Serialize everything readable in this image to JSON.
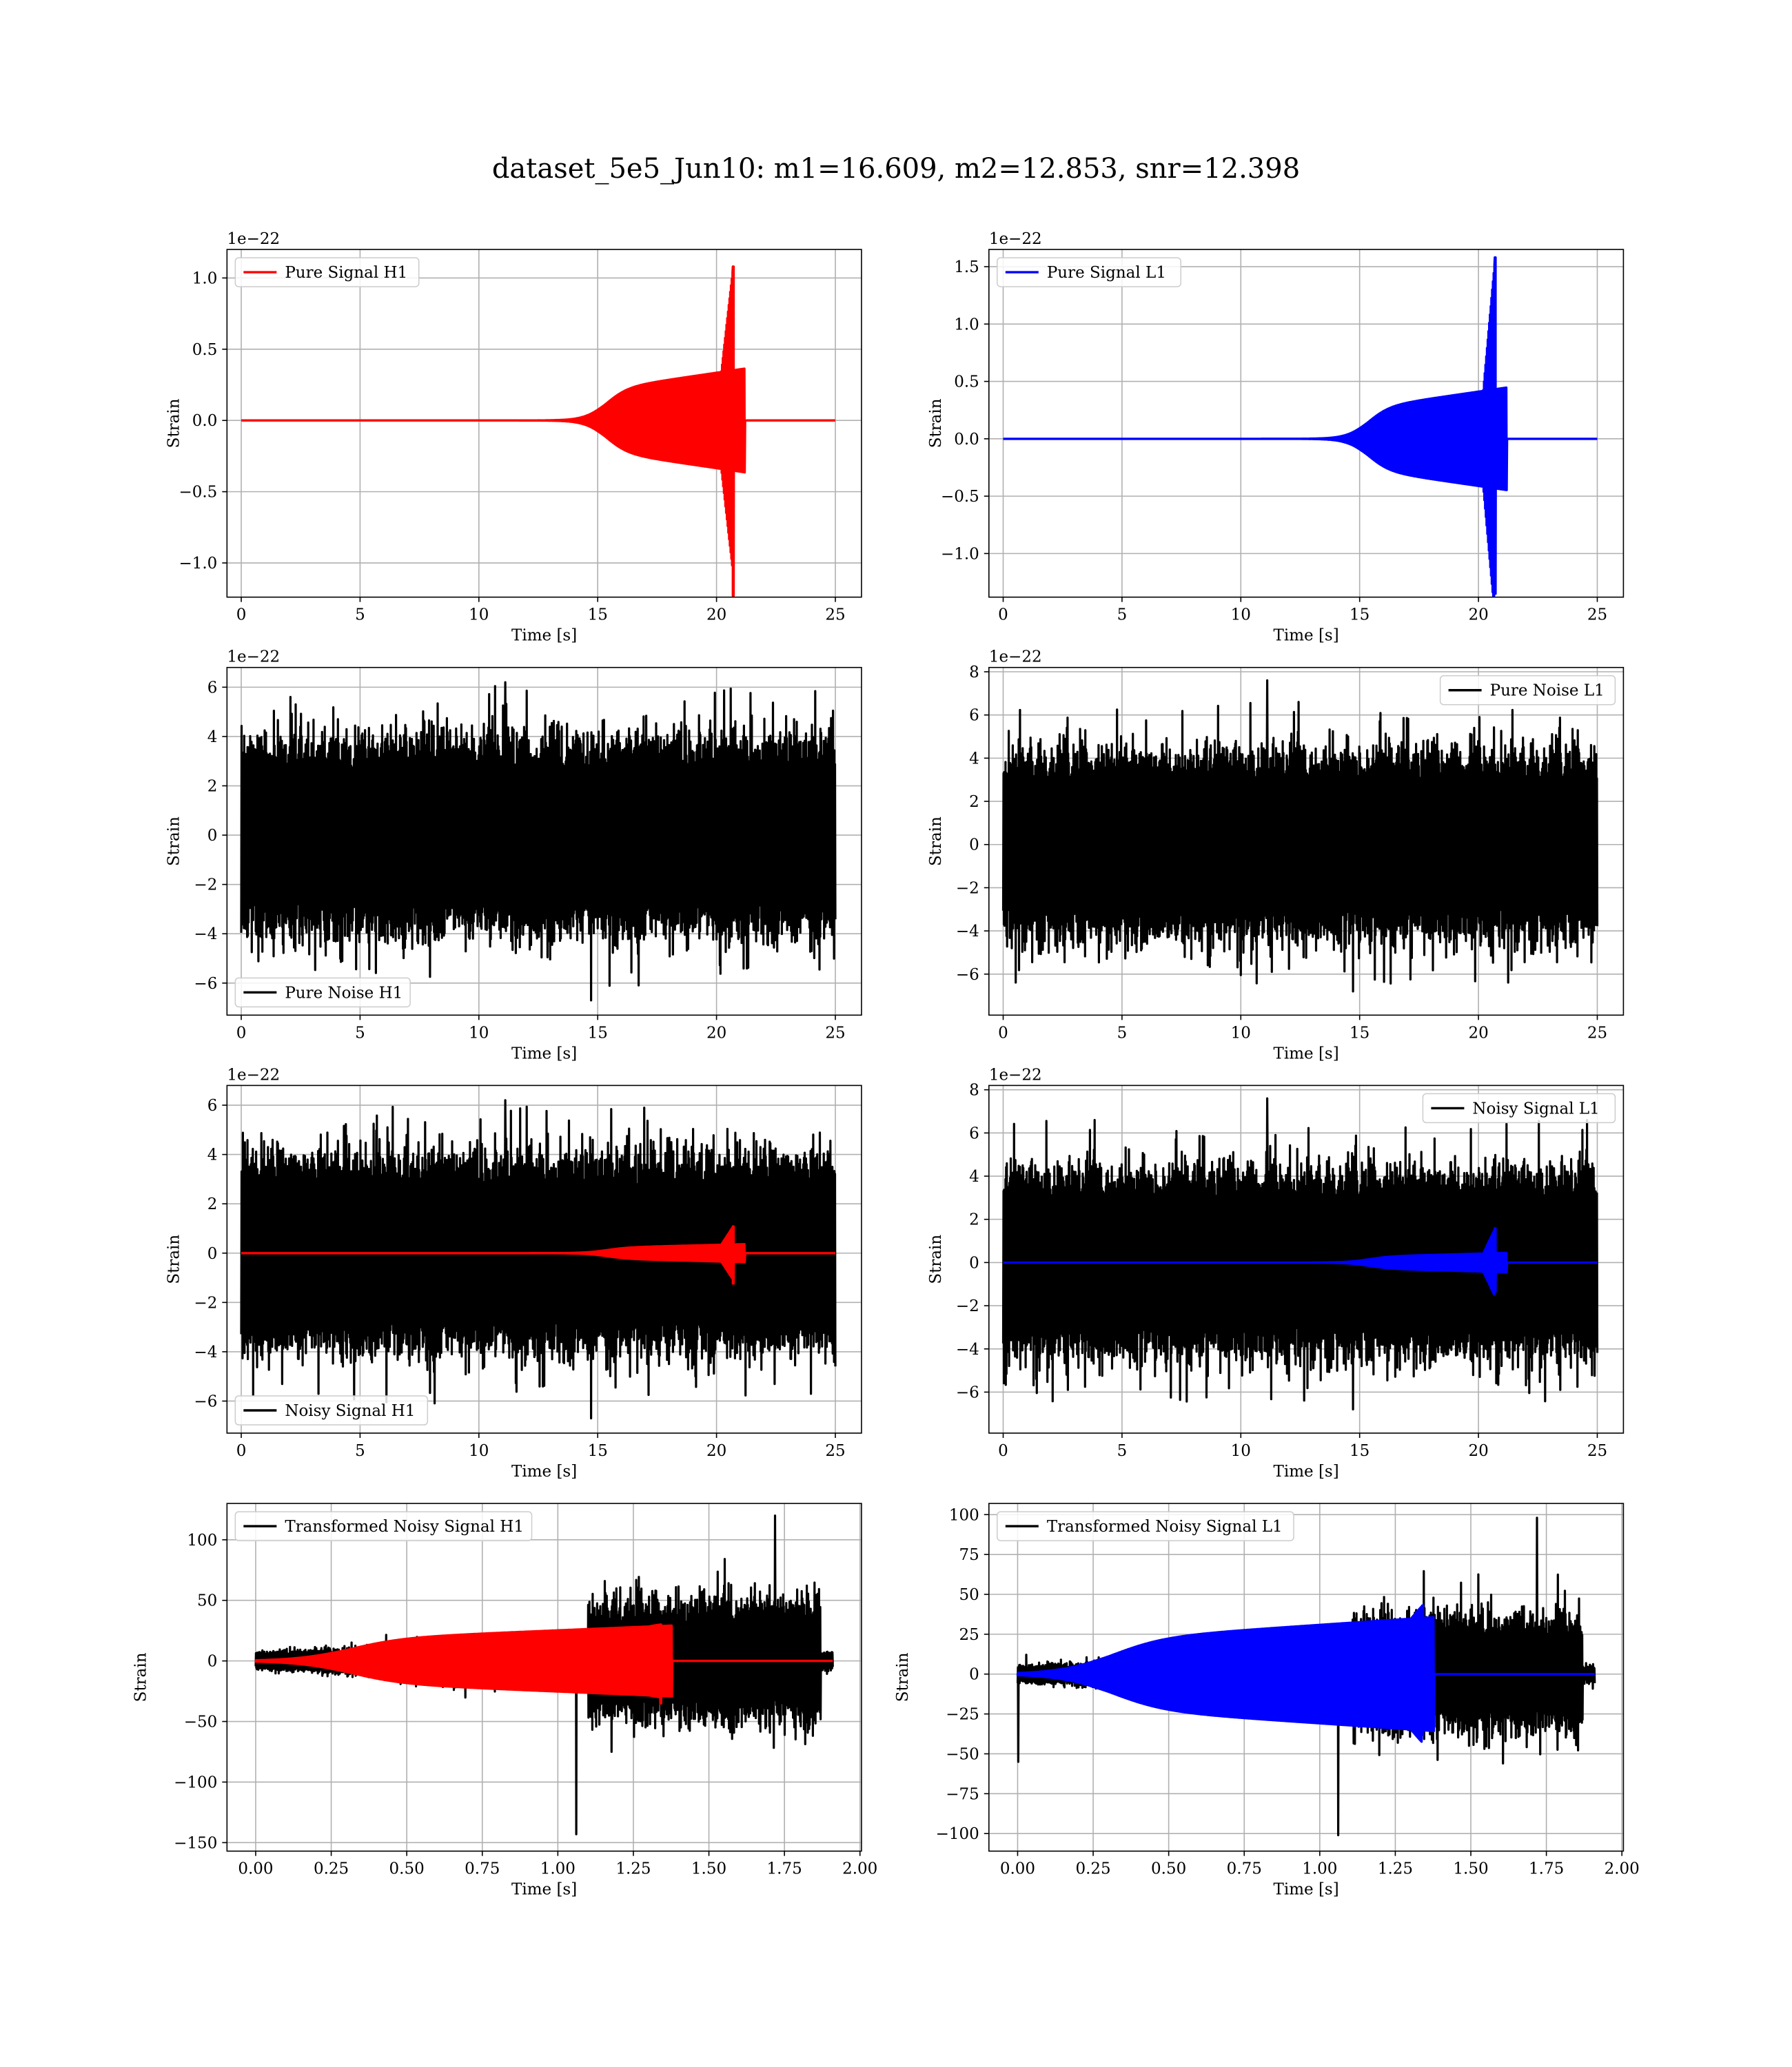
{
  "title": "dataset_5e5_Jun10: m1=16.609, m2=12.853, snr=12.398",
  "colors": {
    "h1_signal": "#ff0000",
    "l1_signal": "#0000ff",
    "noise": "#000000",
    "grid": "#b0b0b0"
  },
  "chart_data": [
    {
      "id": "pure-signal-h1",
      "type": "line",
      "xlabel": "Time [s]",
      "ylabel": "Strain",
      "offset_label": "1e−22",
      "xlim": [
        -0.6,
        26.1
      ],
      "ylim": [
        -1.24,
        1.2
      ],
      "xticks": [
        0,
        5,
        10,
        15,
        20,
        25
      ],
      "yticks": [
        -1.0,
        -0.5,
        0.0,
        0.5,
        1.0
      ],
      "ytick_labels": [
        "−1.0",
        "−0.5",
        "0.0",
        "0.5",
        "1.0"
      ],
      "legend": "upper-left",
      "grid": true,
      "series": [
        {
          "name": "Pure Signal H1",
          "color": "#ff0000",
          "kind": "chirp",
          "x_start": 0,
          "x_end": 25,
          "t_merge": 20.7,
          "t_onset": 15.3,
          "plateau": 0.22,
          "peak": 1.08,
          "peak_neg": -1.23
        }
      ]
    },
    {
      "id": "pure-signal-l1",
      "type": "line",
      "xlabel": "Time [s]",
      "ylabel": "Strain",
      "offset_label": "1e−22",
      "xlim": [
        -0.6,
        26.1
      ],
      "ylim": [
        -1.38,
        1.65
      ],
      "xticks": [
        0,
        5,
        10,
        15,
        20,
        25
      ],
      "yticks": [
        -1.0,
        -0.5,
        0.0,
        0.5,
        1.0,
        1.5
      ],
      "ytick_labels": [
        "−1.0",
        "−0.5",
        "0.0",
        "0.5",
        "1.0",
        "1.5"
      ],
      "legend": "upper-left",
      "grid": true,
      "series": [
        {
          "name": "Pure Signal L1",
          "color": "#0000ff",
          "kind": "chirp",
          "x_start": 0,
          "x_end": 25,
          "t_merge": 20.7,
          "t_onset": 15.3,
          "plateau": 0.27,
          "peak": 1.58,
          "peak_neg": -1.35
        }
      ]
    },
    {
      "id": "pure-noise-h1",
      "type": "line",
      "xlabel": "Time [s]",
      "ylabel": "Strain",
      "offset_label": "1e−22",
      "xlim": [
        -0.6,
        26.1
      ],
      "ylim": [
        -7.3,
        6.8
      ],
      "xticks": [
        0,
        5,
        10,
        15,
        20,
        25
      ],
      "yticks": [
        -6,
        -4,
        -2,
        0,
        2,
        4,
        6
      ],
      "ytick_labels": [
        "−6",
        "−4",
        "−2",
        "0",
        "2",
        "4",
        "6"
      ],
      "legend": "lower-left",
      "grid": true,
      "series": [
        {
          "name": "Pure Noise H1",
          "color": "#000000",
          "kind": "noise",
          "x_start": 0,
          "x_end": 25,
          "band": 3.6,
          "spike_max": 6.2,
          "spike_min": -6.7
        }
      ]
    },
    {
      "id": "pure-noise-l1",
      "type": "line",
      "xlabel": "Time [s]",
      "ylabel": "Strain",
      "offset_label": "1e−22",
      "xlim": [
        -0.6,
        26.1
      ],
      "ylim": [
        -7.9,
        8.2
      ],
      "xticks": [
        0,
        5,
        10,
        15,
        20,
        25
      ],
      "yticks": [
        -6,
        -4,
        -2,
        0,
        2,
        4,
        6,
        8
      ],
      "ytick_labels": [
        "−6",
        "−4",
        "−2",
        "0",
        "2",
        "4",
        "6",
        "8"
      ],
      "legend": "upper-right",
      "grid": true,
      "series": [
        {
          "name": "Pure Noise L1",
          "color": "#000000",
          "kind": "noise",
          "x_start": 0,
          "x_end": 25,
          "band": 3.9,
          "spike_max": 7.6,
          "spike_min": -6.8
        }
      ]
    },
    {
      "id": "noisy-signal-h1",
      "type": "line",
      "xlabel": "Time [s]",
      "ylabel": "Strain",
      "offset_label": "1e−22",
      "xlim": [
        -0.6,
        26.1
      ],
      "ylim": [
        -7.3,
        6.8
      ],
      "xticks": [
        0,
        5,
        10,
        15,
        20,
        25
      ],
      "yticks": [
        -6,
        -4,
        -2,
        0,
        2,
        4,
        6
      ],
      "ytick_labels": [
        "−6",
        "−4",
        "−2",
        "0",
        "2",
        "4",
        "6"
      ],
      "legend": "lower-left",
      "grid": true,
      "series": [
        {
          "name": "Noisy Signal H1",
          "color": "#000000",
          "kind": "noise",
          "x_start": 0,
          "x_end": 25,
          "band": 3.6,
          "spike_max": 6.2,
          "spike_min": -6.7
        },
        {
          "color": "#ff0000",
          "kind": "chirp",
          "x_start": 0,
          "x_end": 25,
          "t_merge": 20.7,
          "t_onset": 15.3,
          "plateau": 0.22,
          "peak": 1.08,
          "peak_neg": -1.23
        }
      ]
    },
    {
      "id": "noisy-signal-l1",
      "type": "line",
      "xlabel": "Time [s]",
      "ylabel": "Strain",
      "offset_label": "1e−22",
      "xlim": [
        -0.6,
        26.1
      ],
      "ylim": [
        -7.9,
        8.2
      ],
      "xticks": [
        0,
        5,
        10,
        15,
        20,
        25
      ],
      "yticks": [
        -6,
        -4,
        -2,
        0,
        2,
        4,
        6,
        8
      ],
      "ytick_labels": [
        "−6",
        "−4",
        "−2",
        "0",
        "2",
        "4",
        "6",
        "8"
      ],
      "legend": "upper-right",
      "grid": true,
      "series": [
        {
          "name": "Noisy Signal L1",
          "color": "#000000",
          "kind": "noise",
          "x_start": 0,
          "x_end": 25,
          "band": 3.9,
          "spike_max": 7.6,
          "spike_min": -6.8
        },
        {
          "color": "#0000ff",
          "kind": "chirp",
          "x_start": 0,
          "x_end": 25,
          "t_merge": 20.7,
          "t_onset": 15.3,
          "plateau": 0.27,
          "peak": 1.58,
          "peak_neg": -1.35
        }
      ]
    },
    {
      "id": "transformed-noisy-signal-h1",
      "type": "line",
      "xlabel": "Time [s]",
      "ylabel": "Strain",
      "offset_label": "",
      "xlim": [
        -0.095,
        2.005
      ],
      "ylim": [
        -157,
        130
      ],
      "xticks": [
        0.0,
        0.25,
        0.5,
        0.75,
        1.0,
        1.25,
        1.5,
        1.75,
        2.0
      ],
      "xtick_labels": [
        "0.00",
        "0.25",
        "0.50",
        "0.75",
        "1.00",
        "1.25",
        "1.50",
        "1.75",
        "2.00"
      ],
      "yticks": [
        -150,
        -100,
        -50,
        0,
        50,
        100
      ],
      "ytick_labels": [
        "−150",
        "−100",
        "−50",
        "0",
        "50",
        "100"
      ],
      "legend": "upper-left",
      "grid": true,
      "series": [
        {
          "name": "Transformed Noisy Signal H1",
          "color": "#000000",
          "kind": "whitened",
          "x_start": 0,
          "x_end": 1.91,
          "t_loud": 1.1,
          "t_quiet_end": 1.87,
          "low_band": 8,
          "high_band": 55,
          "spike_max": 120,
          "spike_min": -143
        },
        {
          "color": "#ff0000",
          "kind": "chirp",
          "x_start": 0,
          "x_end": 1.91,
          "t_merge": 1.34,
          "t_onset": 0.3,
          "plateau": 18,
          "peak": 30,
          "peak_neg": -35
        }
      ]
    },
    {
      "id": "transformed-noisy-signal-l1",
      "type": "line",
      "xlabel": "Time [s]",
      "ylabel": "Strain",
      "offset_label": "",
      "xlim": [
        -0.095,
        2.005
      ],
      "ylim": [
        -111,
        107
      ],
      "xticks": [
        0.0,
        0.25,
        0.5,
        0.75,
        1.0,
        1.25,
        1.5,
        1.75,
        2.0
      ],
      "xtick_labels": [
        "0.00",
        "0.25",
        "0.50",
        "0.75",
        "1.00",
        "1.25",
        "1.50",
        "1.75",
        "2.00"
      ],
      "yticks": [
        -100,
        -75,
        -50,
        -25,
        0,
        25,
        50,
        75,
        100
      ],
      "ytick_labels": [
        "−100",
        "−75",
        "−50",
        "−25",
        "0",
        "25",
        "50",
        "75",
        "100"
      ],
      "legend": "upper-left",
      "grid": true,
      "series": [
        {
          "name": "Transformed Noisy Signal L1",
          "color": "#000000",
          "kind": "whitened",
          "x_start": 0,
          "x_end": 1.91,
          "t_loud": 1.1,
          "t_quiet_end": 1.87,
          "low_band": 6,
          "high_band": 40,
          "spike_max": 98,
          "spike_min": -101,
          "start_spike": -55
        },
        {
          "color": "#0000ff",
          "kind": "chirp",
          "x_start": 0,
          "x_end": 1.91,
          "t_merge": 1.34,
          "t_onset": 0.3,
          "plateau": 22,
          "peak": 43,
          "peak_neg": -38
        }
      ]
    }
  ]
}
